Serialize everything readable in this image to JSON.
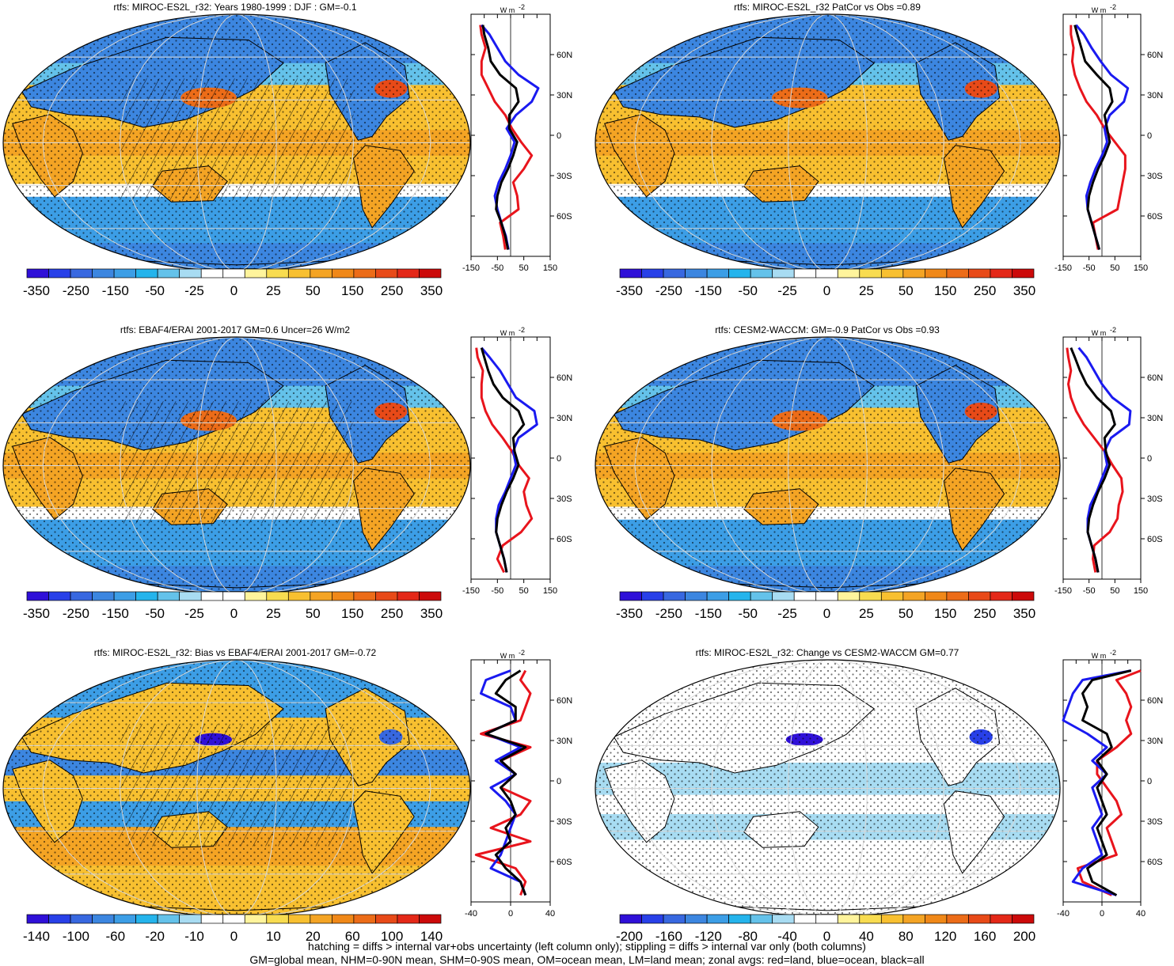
{
  "footer": {
    "line1": "hatching = diffs > internal var+obs uncertainty (left column only); stippling = diffs > internal var only (both columns)",
    "line2": "GM=global mean, NHM=0-90N mean, SHM=0-90S mean, OM=ocean mean, LM=land mean; zonal avgs: red=land, blue=ocean, black=all"
  },
  "colors": {
    "land": "#e8141c",
    "ocean": "#1a1af0",
    "all": "#000000",
    "palette": [
      "#2f10d8",
      "#2840e8",
      "#3868e0",
      "#3c86e0",
      "#3c9ee6",
      "#24b4ec",
      "#64c2ea",
      "#a8dcf2",
      "#ffffff",
      "#ffffff",
      "#fff49c",
      "#f8dc50",
      "#f8c030",
      "#f4a424",
      "#f08818",
      "#ec6c18",
      "#e84a18",
      "#e42818",
      "#cc0a0a"
    ]
  },
  "chart_data": [
    {
      "type": "heatmap",
      "title": "rtfs: MIROC-ES2L_r32: Years 1980-1999 : DJF : GM=-0.1",
      "colorbar_labels": [
        "-350",
        "-250",
        "-150",
        "-50",
        "-25",
        "0",
        "25",
        "50",
        "150",
        "250",
        "350"
      ],
      "hatching": true,
      "zonal": {
        "unit": "W m",
        "unit_sup": "-2",
        "xlim": [
          -150,
          150
        ],
        "xticks": [
          "-150",
          "-50",
          "50",
          "150"
        ],
        "ylim": [
          -90,
          90
        ],
        "yticks": [
          "60N",
          "30N",
          "0",
          "30S",
          "60S"
        ],
        "lat": [
          -85,
          -75,
          -65,
          -55,
          -45,
          -35,
          -25,
          -15,
          -5,
          5,
          15,
          25,
          35,
          45,
          55,
          65,
          75,
          82
        ],
        "series": [
          {
            "color": "land",
            "values": [
              -20,
              -28,
              -40,
              30,
              25,
              10,
              50,
              80,
              40,
              5,
              -20,
              -60,
              -85,
              -110,
              -110,
              -95,
              -110,
              -115
            ]
          },
          {
            "color": "ocean",
            "values": [
              -8,
              -18,
              -35,
              -50,
              -60,
              -45,
              -20,
              0,
              15,
              -15,
              20,
              80,
              105,
              30,
              -20,
              -50,
              -80,
              -110
            ]
          },
          {
            "color": "all",
            "values": [
              -10,
              -20,
              -35,
              -55,
              -50,
              -35,
              -10,
              10,
              25,
              -5,
              -5,
              30,
              20,
              -40,
              -75,
              -85,
              -100,
              -105
            ]
          }
        ]
      }
    },
    {
      "type": "heatmap",
      "title": "rtfs: MIROC-ES2L_r32 PatCor vs Obs =0.89",
      "colorbar_labels": [
        "-350",
        "-250",
        "-150",
        "-50",
        "-25",
        "0",
        "25",
        "50",
        "150",
        "250",
        "350"
      ],
      "hatching": false,
      "zonal": {
        "unit": "W m",
        "unit_sup": "-2",
        "xlim": [
          -150,
          150
        ],
        "xticks": [
          "-150",
          "-50",
          "50",
          "150"
        ],
        "ylim": [
          -90,
          90
        ],
        "yticks": [
          "60N",
          "30N",
          "0",
          "30S",
          "60S"
        ],
        "lat": [
          -85,
          -75,
          -65,
          -55,
          -45,
          -35,
          -25,
          -15,
          -5,
          5,
          15,
          25,
          35,
          45,
          55,
          65,
          75,
          82
        ],
        "series": [
          {
            "color": "land",
            "values": [
              -15,
              -25,
              -35,
              60,
              70,
              80,
              90,
              90,
              50,
              10,
              -20,
              -60,
              -85,
              -105,
              -115,
              -110,
              -120,
              -120
            ]
          },
          {
            "color": "ocean",
            "values": [
              -10,
              -25,
              -40,
              -55,
              -60,
              -45,
              -25,
              0,
              20,
              10,
              30,
              85,
              100,
              35,
              -5,
              -40,
              -70,
              -100
            ]
          },
          {
            "color": "all",
            "values": [
              -10,
              -25,
              -40,
              -55,
              -50,
              -35,
              -15,
              10,
              30,
              20,
              10,
              40,
              30,
              -20,
              -65,
              -80,
              -95,
              -105
            ]
          }
        ]
      }
    },
    {
      "type": "heatmap",
      "title": "rtfs: EBAF4/ERAI 2001-2017 GM=0.6 Uncer=26 W/m2",
      "colorbar_labels": [
        "-350",
        "-250",
        "-150",
        "-50",
        "-25",
        "0",
        "25",
        "50",
        "150",
        "250",
        "350"
      ],
      "hatching": true,
      "zonal": {
        "unit": "W m",
        "unit_sup": "-2",
        "xlim": [
          -150,
          150
        ],
        "xticks": [
          "-150",
          "-50",
          "50",
          "150"
        ],
        "ylim": [
          -90,
          90
        ],
        "yticks": [
          "60N",
          "30N",
          "0",
          "30S",
          "60S"
        ],
        "lat": [
          -85,
          -75,
          -65,
          -55,
          -45,
          -35,
          -25,
          -15,
          -5,
          5,
          15,
          25,
          35,
          45,
          55,
          65,
          75,
          82
        ],
        "series": [
          {
            "color": "land",
            "values": [
              -25,
              -50,
              -30,
              40,
              80,
              60,
              50,
              70,
              30,
              5,
              -30,
              -70,
              -95,
              -110,
              -110,
              -105,
              -125,
              -130
            ]
          },
          {
            "color": "ocean",
            "values": [
              -15,
              -25,
              -40,
              -55,
              -55,
              -45,
              -20,
              0,
              20,
              10,
              30,
              100,
              90,
              20,
              -10,
              -40,
              -80,
              -110
            ]
          },
          {
            "color": "all",
            "values": [
              -15,
              -25,
              -40,
              -55,
              -50,
              -35,
              -15,
              10,
              30,
              15,
              10,
              50,
              30,
              -30,
              -65,
              -85,
              -100,
              -110
            ]
          }
        ]
      }
    },
    {
      "type": "heatmap",
      "title": "rtfs: CESM2-WACCM: GM=-0.9 PatCor vs Obs =0.93",
      "colorbar_labels": [
        "-350",
        "-250",
        "-150",
        "-50",
        "-25",
        "0",
        "25",
        "50",
        "150",
        "250",
        "350"
      ],
      "hatching": false,
      "zonal": {
        "unit": "W m",
        "unit_sup": "-2",
        "xlim": [
          -150,
          150
        ],
        "xticks": [
          "-150",
          "-50",
          "50",
          "150"
        ],
        "ylim": [
          -90,
          90
        ],
        "yticks": [
          "60N",
          "30N",
          "0",
          "30S",
          "60S"
        ],
        "lat": [
          -85,
          -75,
          -65,
          -55,
          -45,
          -35,
          -25,
          -15,
          -5,
          5,
          15,
          25,
          35,
          45,
          55,
          65,
          75,
          82
        ],
        "series": [
          {
            "color": "land",
            "values": [
              -25,
              -35,
              -30,
              30,
              60,
              65,
              80,
              75,
              40,
              10,
              -30,
              -70,
              -100,
              -120,
              -130,
              -120,
              -130,
              -135
            ]
          },
          {
            "color": "ocean",
            "values": [
              -15,
              -25,
              -40,
              -55,
              -55,
              -45,
              -20,
              0,
              20,
              10,
              35,
              105,
              110,
              40,
              0,
              -30,
              -60,
              -90
            ]
          },
          {
            "color": "all",
            "values": [
              -15,
              -25,
              -40,
              -55,
              -50,
              -35,
              -15,
              10,
              30,
              15,
              10,
              50,
              35,
              -20,
              -60,
              -85,
              -105,
              -120
            ]
          }
        ]
      }
    },
    {
      "type": "heatmap",
      "title": "rtfs: MIROC-ES2L_r32: Bias vs EBAF4/ERAI 2001-2017 GM=-0.72",
      "colorbar_labels": [
        "-140",
        "-100",
        "-60",
        "-20",
        "-10",
        "0",
        "10",
        "20",
        "60",
        "100",
        "140"
      ],
      "hatching": true,
      "zonal": {
        "unit": "W m",
        "unit_sup": "-2",
        "xlim": [
          -40,
          40
        ],
        "xticks": [
          "-40",
          "0",
          "40"
        ],
        "ylim": [
          -90,
          90
        ],
        "yticks": [
          "60N",
          "30N",
          "0",
          "30S",
          "60S"
        ],
        "lat": [
          -85,
          -75,
          -65,
          -55,
          -45,
          -35,
          -25,
          -15,
          -5,
          5,
          15,
          25,
          35,
          45,
          55,
          65,
          75,
          82
        ],
        "series": [
          {
            "color": "land",
            "values": [
              10,
              15,
              5,
              -35,
              20,
              -20,
              10,
              20,
              -10,
              5,
              -10,
              20,
              -30,
              10,
              15,
              20,
              10,
              15
            ]
          },
          {
            "color": "ocean",
            "values": [
              15,
              10,
              -20,
              -10,
              -5,
              0,
              5,
              -5,
              -20,
              5,
              -15,
              10,
              -25,
              5,
              0,
              -30,
              -25,
              0
            ]
          },
          {
            "color": "all",
            "values": [
              15,
              10,
              -5,
              -15,
              0,
              -5,
              5,
              0,
              -10,
              5,
              -10,
              15,
              -25,
              5,
              5,
              -15,
              -5,
              10
            ]
          }
        ]
      }
    },
    {
      "type": "heatmap",
      "title": "rtfs: MIROC-ES2L_r32: Change vs CESM2-WACCM GM=0.77",
      "colorbar_labels": [
        "-200",
        "-160",
        "-120",
        "-80",
        "-40",
        "0",
        "40",
        "80",
        "120",
        "160",
        "200"
      ],
      "hatching": false,
      "zonal": {
        "unit": "W m",
        "unit_sup": "-2",
        "xlim": [
          -40,
          40
        ],
        "xticks": [
          "-40",
          "0",
          "40"
        ],
        "ylim": [
          -90,
          90
        ],
        "yticks": [
          "60N",
          "30N",
          "0",
          "30S",
          "60S"
        ],
        "lat": [
          -85,
          -75,
          -65,
          -55,
          -45,
          -35,
          -25,
          -15,
          -5,
          5,
          15,
          25,
          35,
          45,
          55,
          65,
          75,
          82
        ],
        "series": [
          {
            "color": "land",
            "values": [
              10,
              -20,
              -25,
              15,
              10,
              5,
              20,
              15,
              5,
              -5,
              -5,
              15,
              30,
              25,
              30,
              25,
              15,
              40
            ]
          },
          {
            "color": "ocean",
            "values": [
              15,
              -30,
              -20,
              0,
              -5,
              -10,
              0,
              -5,
              -10,
              5,
              -10,
              5,
              -15,
              -40,
              -35,
              -30,
              -20,
              30
            ]
          },
          {
            "color": "all",
            "values": [
              15,
              -10,
              -15,
              5,
              0,
              -5,
              5,
              0,
              -5,
              5,
              -5,
              10,
              5,
              -20,
              -15,
              -20,
              -10,
              30
            ]
          }
        ]
      }
    }
  ]
}
